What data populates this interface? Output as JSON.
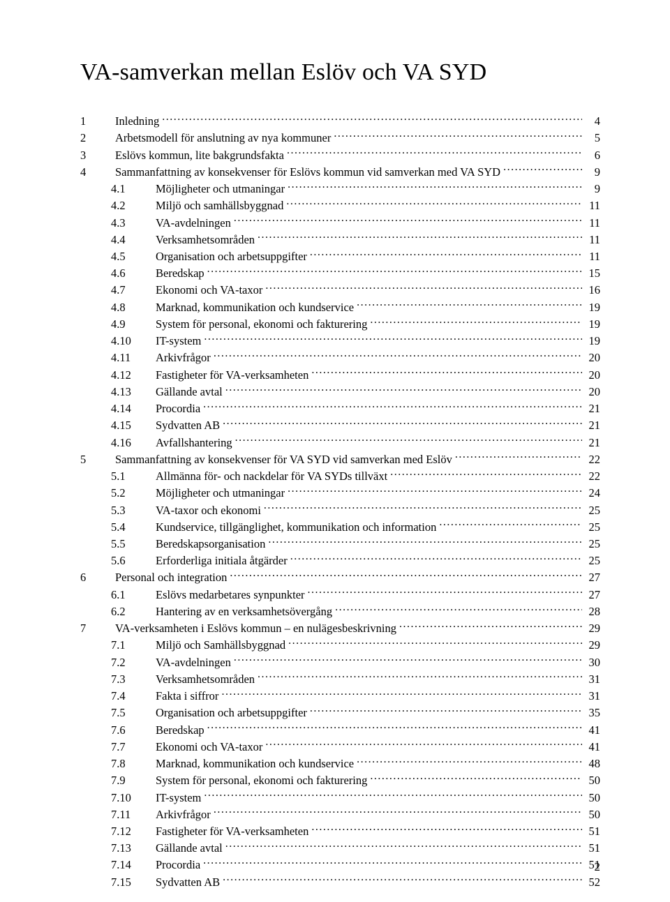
{
  "title": "VA-samverkan mellan Eslöv och VA SYD",
  "page_number": "2",
  "font_family": "Times New Roman",
  "title_fontsize": 34,
  "body_fontsize": 16.5,
  "text_color": "#000000",
  "background_color": "#ffffff",
  "toc": [
    {
      "level": 1,
      "num": "1",
      "title": "Inledning",
      "page": "4"
    },
    {
      "level": 1,
      "num": "2",
      "title": "Arbetsmodell för anslutning av nya kommuner",
      "page": "5"
    },
    {
      "level": 1,
      "num": "3",
      "title": "Eslövs kommun, lite bakgrundsfakta",
      "page": "6"
    },
    {
      "level": 1,
      "num": "4",
      "title": "Sammanfattning av konsekvenser för Eslövs kommun vid samverkan med VA SYD",
      "page": "9"
    },
    {
      "level": 2,
      "num": "4.1",
      "title": "Möjligheter och utmaningar",
      "page": "9"
    },
    {
      "level": 2,
      "num": "4.2",
      "title": "Miljö och samhällsbyggnad",
      "page": "11"
    },
    {
      "level": 2,
      "num": "4.3",
      "title": "VA-avdelningen",
      "page": "11"
    },
    {
      "level": 2,
      "num": "4.4",
      "title": "Verksamhetsområden",
      "page": "11"
    },
    {
      "level": 2,
      "num": "4.5",
      "title": "Organisation och arbetsuppgifter",
      "page": "11"
    },
    {
      "level": 2,
      "num": "4.6",
      "title": "Beredskap",
      "page": "15"
    },
    {
      "level": 2,
      "num": "4.7",
      "title": "Ekonomi och VA-taxor",
      "page": "16"
    },
    {
      "level": 2,
      "num": "4.8",
      "title": "Marknad, kommunikation och kundservice",
      "page": "19"
    },
    {
      "level": 2,
      "num": "4.9",
      "title": "System för personal, ekonomi och fakturering",
      "page": "19"
    },
    {
      "level": 2,
      "num": "4.10",
      "title": "IT-system",
      "page": "19"
    },
    {
      "level": 2,
      "num": "4.11",
      "title": "Arkivfrågor",
      "page": "20"
    },
    {
      "level": 2,
      "num": "4.12",
      "title": "Fastigheter för VA-verksamheten",
      "page": "20"
    },
    {
      "level": 2,
      "num": "4.13",
      "title": "Gällande avtal",
      "page": "20"
    },
    {
      "level": 2,
      "num": "4.14",
      "title": "Procordia",
      "page": "21"
    },
    {
      "level": 2,
      "num": "4.15",
      "title": "Sydvatten AB",
      "page": "21"
    },
    {
      "level": 2,
      "num": "4.16",
      "title": "Avfallshantering",
      "page": "21"
    },
    {
      "level": 1,
      "num": "5",
      "title": "Sammanfattning av konsekvenser för VA SYD vid samverkan med Eslöv",
      "page": "22"
    },
    {
      "level": 2,
      "num": "5.1",
      "title": "Allmänna för- och nackdelar för VA SYDs tillväxt",
      "page": "22"
    },
    {
      "level": 2,
      "num": "5.2",
      "title": "Möjligheter och utmaningar",
      "page": "24"
    },
    {
      "level": 2,
      "num": "5.3",
      "title": "VA-taxor och ekonomi",
      "page": "25"
    },
    {
      "level": 2,
      "num": "5.4",
      "title": "Kundservice, tillgänglighet, kommunikation och information",
      "page": "25"
    },
    {
      "level": 2,
      "num": "5.5",
      "title": "Beredskapsorganisation",
      "page": "25"
    },
    {
      "level": 2,
      "num": "5.6",
      "title": "Erforderliga initiala åtgärder",
      "page": "25"
    },
    {
      "level": 1,
      "num": "6",
      "title": "Personal och integration",
      "page": "27"
    },
    {
      "level": 2,
      "num": "6.1",
      "title": "Eslövs medarbetares synpunkter",
      "page": "27"
    },
    {
      "level": 2,
      "num": "6.2",
      "title": "Hantering av en verksamhetsövergång",
      "page": "28"
    },
    {
      "level": 1,
      "num": "7",
      "title": "VA-verksamheten i Eslövs kommun – en nulägesbeskrivning",
      "page": "29"
    },
    {
      "level": 2,
      "num": "7.1",
      "title": "Miljö och Samhällsbyggnad",
      "page": "29"
    },
    {
      "level": 2,
      "num": "7.2",
      "title": "VA-avdelningen",
      "page": "30"
    },
    {
      "level": 2,
      "num": "7.3",
      "title": "Verksamhetsområden",
      "page": "31"
    },
    {
      "level": 2,
      "num": "7.4",
      "title": "Fakta i siffror",
      "page": "31"
    },
    {
      "level": 2,
      "num": "7.5",
      "title": "Organisation och arbetsuppgifter",
      "page": "35"
    },
    {
      "level": 2,
      "num": "7.6",
      "title": "Beredskap",
      "page": "41"
    },
    {
      "level": 2,
      "num": "7.7",
      "title": "Ekonomi och VA-taxor",
      "page": "41"
    },
    {
      "level": 2,
      "num": "7.8",
      "title": "Marknad, kommunikation och kundservice",
      "page": "48"
    },
    {
      "level": 2,
      "num": "7.9",
      "title": "System för personal, ekonomi och fakturering",
      "page": "50"
    },
    {
      "level": 2,
      "num": "7.10",
      "title": "IT-system",
      "page": "50"
    },
    {
      "level": 2,
      "num": "7.11",
      "title": "Arkivfrågor",
      "page": "50"
    },
    {
      "level": 2,
      "num": "7.12",
      "title": "Fastigheter för VA-verksamheten",
      "page": "51"
    },
    {
      "level": 2,
      "num": "7.13",
      "title": "Gällande avtal",
      "page": "51"
    },
    {
      "level": 2,
      "num": "7.14",
      "title": "Procordia",
      "page": "51"
    },
    {
      "level": 2,
      "num": "7.15",
      "title": "Sydvatten AB",
      "page": "52"
    }
  ]
}
